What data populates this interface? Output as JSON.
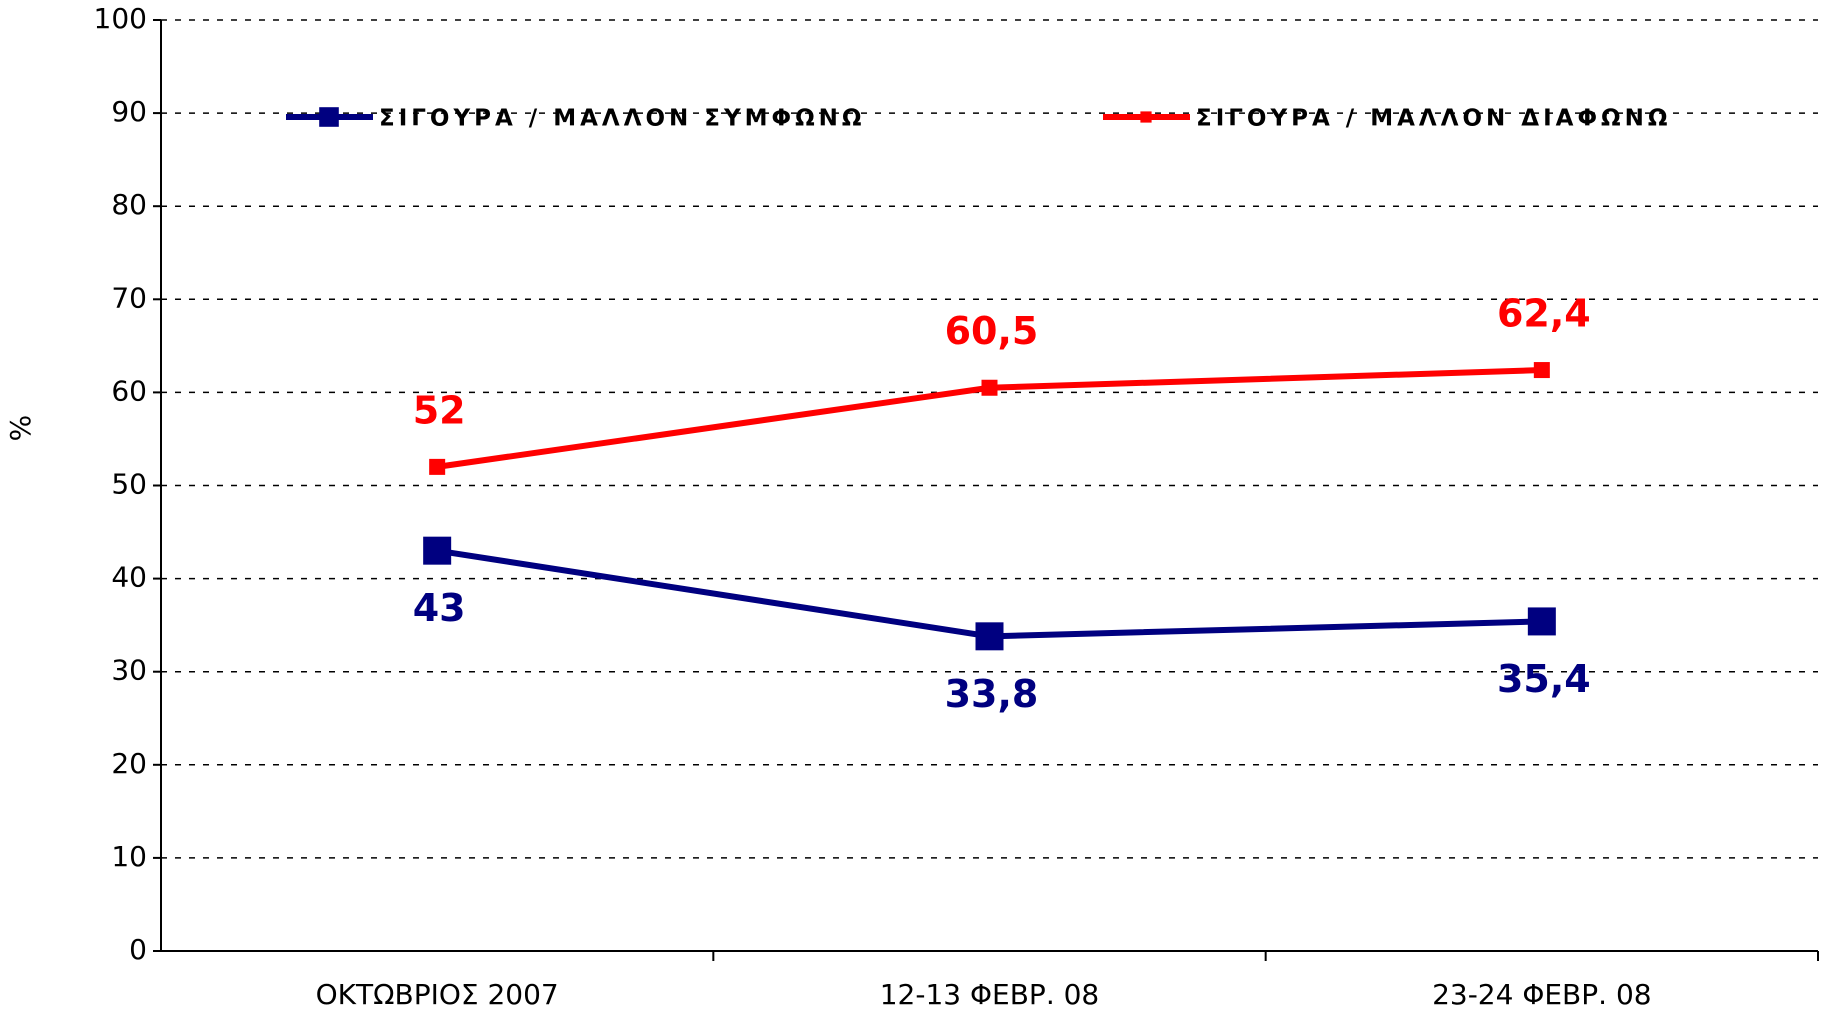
{
  "chart_data": {
    "type": "line",
    "y_label": "%",
    "categories": [
      "ΟΚΤΩΒΡΙΟΣ 2007",
      "12-13 ΦΕΒΡ. 08",
      "23-24 ΦΕΒΡ. 08"
    ],
    "series": [
      {
        "name": "ΣΙΓΟΥΡΑ / ΜΑΛΛΟΝ ΣΥΜΦΩΝΩ",
        "color": "#000080",
        "values": [
          43,
          33.8,
          35.4
        ],
        "value_labels": [
          "43",
          "33,8",
          "35,4"
        ]
      },
      {
        "name": "ΣΙΓΟΥΡΑ / ΜΑΛΛΟΝ ΔΙΑΦΩΝΩ",
        "color": "#ff0000",
        "values": [
          52,
          60.5,
          62.4
        ],
        "value_labels": [
          "52",
          "60,5",
          "62,4"
        ]
      }
    ],
    "ylim": [
      0,
      100
    ],
    "yticks": [
      0,
      10,
      20,
      30,
      40,
      50,
      60,
      70,
      80,
      90,
      100
    ],
    "grid": true,
    "legend": "top"
  }
}
